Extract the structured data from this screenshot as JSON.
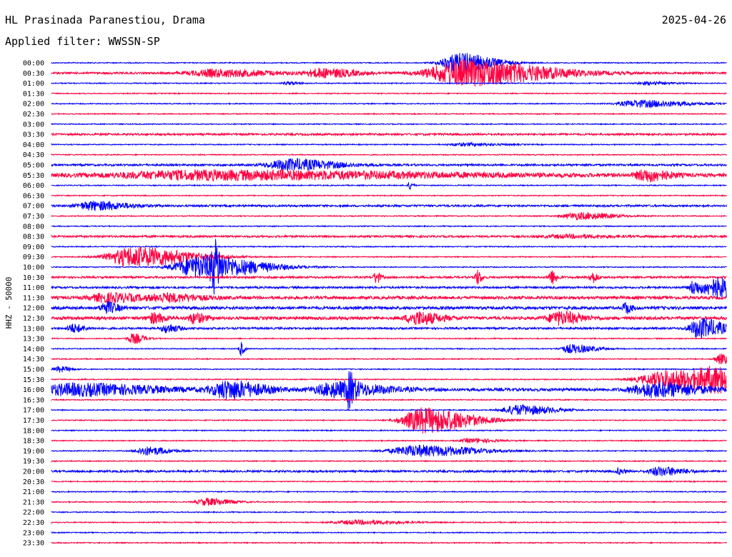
{
  "header": {
    "station": "HL Prasinada Paranestiou, Drama",
    "date": "2025-04-26",
    "filter": "Applied filter: WWSSN-SP"
  },
  "chart_data": {
    "type": "line",
    "ylabel": "HHZ - 50000",
    "colors": {
      "even": "#0000ff",
      "odd": "#ff0040"
    },
    "rows": [
      "00:00",
      "00:30",
      "01:00",
      "01:30",
      "02:00",
      "02:30",
      "03:00",
      "03:30",
      "04:00",
      "04:30",
      "05:00",
      "05:30",
      "06:00",
      "06:30",
      "07:00",
      "07:30",
      "08:00",
      "08:30",
      "09:00",
      "09:30",
      "10:00",
      "10:30",
      "11:00",
      "11:30",
      "12:00",
      "12:30",
      "13:00",
      "13:30",
      "14:00",
      "14:30",
      "15:00",
      "15:30",
      "16:00",
      "16:30",
      "17:00",
      "17:30",
      "18:00",
      "18:30",
      "19:00",
      "19:30",
      "20:00",
      "20:30",
      "21:00",
      "21:30",
      "22:00",
      "22:30",
      "23:00",
      "23:30"
    ],
    "noise": [
      1,
      2,
      1,
      1,
      1,
      1,
      1,
      2,
      1,
      1,
      2,
      3,
      1,
      1,
      2,
      1,
      1,
      2,
      1,
      1,
      1,
      2,
      2,
      3,
      3,
      3,
      2,
      1,
      1,
      1,
      1,
      1,
      3,
      1,
      1,
      1,
      1,
      1,
      1,
      1,
      2,
      1,
      1,
      1,
      1,
      1,
      1,
      1
    ],
    "events": [
      [
        0,
        0.6,
        0.03,
        14
      ],
      [
        1,
        0.24,
        0.05,
        5
      ],
      [
        1,
        0.4,
        0.03,
        6
      ],
      [
        1,
        0.61,
        0.07,
        18
      ],
      [
        2,
        0.35,
        0.01,
        2
      ],
      [
        2,
        0.88,
        0.02,
        2
      ],
      [
        4,
        0.87,
        0.04,
        5
      ],
      [
        8,
        0.61,
        0.03,
        2
      ],
      [
        10,
        0.35,
        0.04,
        8
      ],
      [
        11,
        0.23,
        0.2,
        6
      ],
      [
        11,
        0.88,
        0.02,
        8
      ],
      [
        12,
        0.53,
        0.003,
        6
      ],
      [
        14,
        0.06,
        0.03,
        6
      ],
      [
        15,
        0.78,
        0.03,
        5
      ],
      [
        17,
        0.76,
        0.04,
        2
      ],
      [
        19,
        0.12,
        0.05,
        14
      ],
      [
        20,
        0.22,
        0.05,
        16
      ],
      [
        20,
        0.24,
        0.005,
        26
      ],
      [
        21,
        0.48,
        0.004,
        8
      ],
      [
        21,
        0.63,
        0.004,
        10
      ],
      [
        21,
        0.74,
        0.005,
        10
      ],
      [
        21,
        0.8,
        0.005,
        8
      ],
      [
        22,
        0.99,
        0.04,
        14
      ],
      [
        22,
        0.95,
        0.005,
        8
      ],
      [
        23,
        0.08,
        0.03,
        6
      ],
      [
        23,
        0.17,
        0.03,
        5
      ],
      [
        24,
        0.08,
        0.01,
        8
      ],
      [
        24,
        0.85,
        0.005,
        8
      ],
      [
        25,
        0.54,
        0.02,
        9
      ],
      [
        25,
        0.75,
        0.02,
        9
      ],
      [
        25,
        0.21,
        0.01,
        7
      ],
      [
        25,
        0.15,
        0.01,
        7
      ],
      [
        26,
        0.03,
        0.01,
        6
      ],
      [
        26,
        0.17,
        0.01,
        6
      ],
      [
        26,
        0.96,
        0.02,
        14
      ],
      [
        27,
        0.12,
        0.01,
        7
      ],
      [
        28,
        0.28,
        0.003,
        10
      ],
      [
        28,
        0.77,
        0.02,
        6
      ],
      [
        29,
        0.99,
        0.01,
        7
      ],
      [
        30,
        0.01,
        0.01,
        4
      ],
      [
        31,
        0.92,
        0.06,
        14
      ],
      [
        31,
        0.99,
        0.04,
        10
      ],
      [
        32,
        0.03,
        0.07,
        8
      ],
      [
        32,
        0.26,
        0.03,
        12
      ],
      [
        32,
        0.42,
        0.04,
        10
      ],
      [
        32,
        0.44,
        0.005,
        18
      ],
      [
        32,
        0.89,
        0.04,
        10
      ],
      [
        34,
        0.69,
        0.03,
        7
      ],
      [
        35,
        0.55,
        0.04,
        18
      ],
      [
        37,
        0.62,
        0.02,
        3
      ],
      [
        38,
        0.14,
        0.02,
        6
      ],
      [
        38,
        0.54,
        0.05,
        8
      ],
      [
        40,
        0.9,
        0.02,
        6
      ],
      [
        40,
        0.84,
        0.005,
        4
      ],
      [
        43,
        0.23,
        0.02,
        5
      ],
      [
        45,
        0.45,
        0.04,
        3
      ]
    ]
  }
}
